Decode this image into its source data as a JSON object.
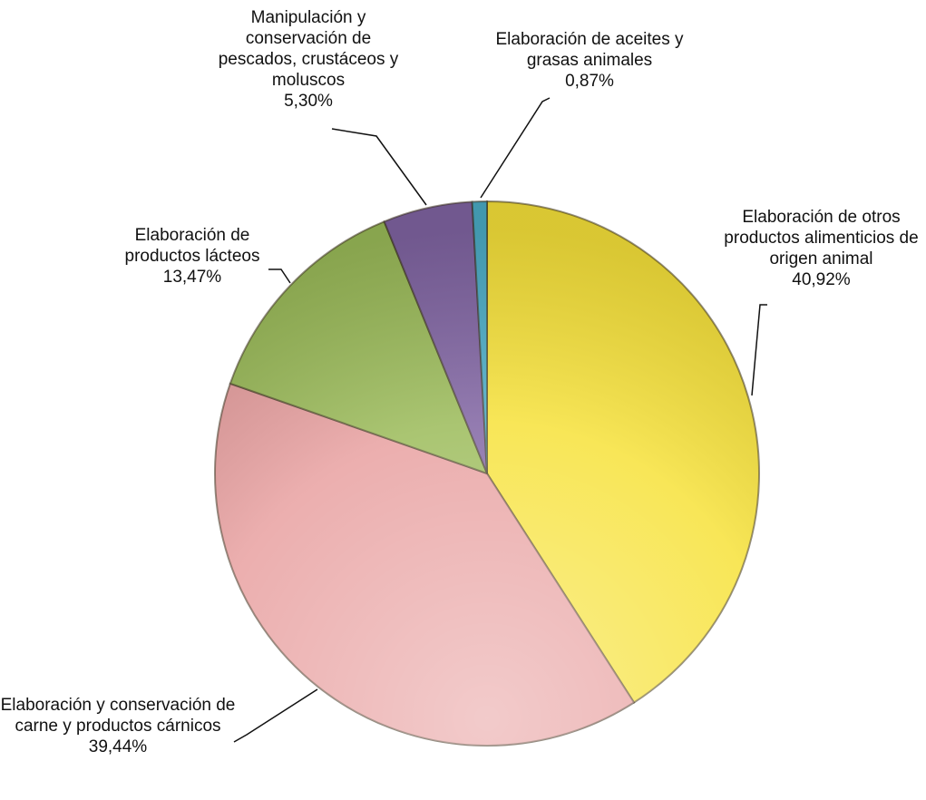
{
  "chart_data": {
    "type": "pie",
    "categories": [
      "Elaboración de otros productos alimenticios de origen animal",
      "Elaboración y conservación de carne y productos cárnicos",
      "Elaboración de productos lácteos",
      "Manipulación y conservación de pescados, crustáceos y moluscos",
      "Elaboración de aceites y grasas animales"
    ],
    "values": [
      40.92,
      39.44,
      13.47,
      5.3,
      0.87
    ],
    "value_labels": [
      "40,92%",
      "39,44%",
      "13,47%",
      "5,30%",
      "0,87%"
    ],
    "colors": [
      "#f7e23a",
      "#e8a0a0",
      "#9bbb59",
      "#8064a2",
      "#4bacc6"
    ]
  }
}
